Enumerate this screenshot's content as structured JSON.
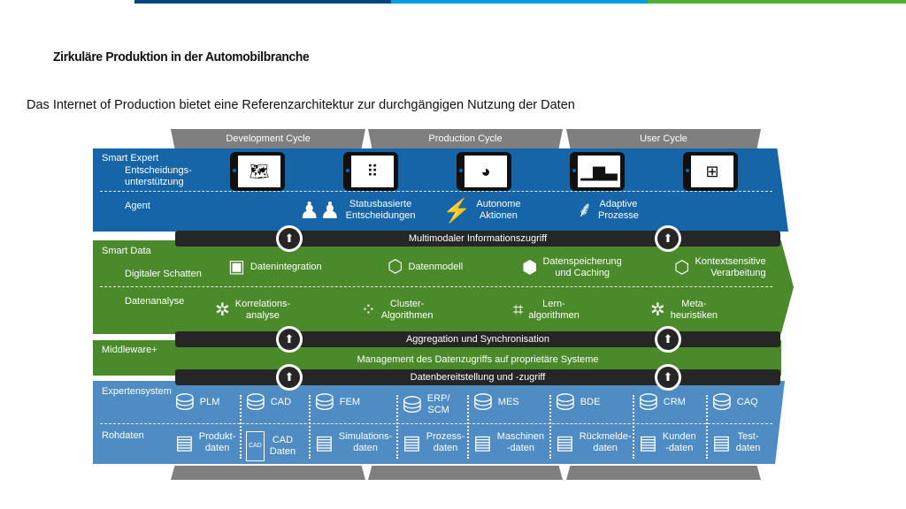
{
  "colors": {
    "top_dark_blue": "#00457c",
    "top_light_blue": "#009fe3",
    "top_green": "#52ae32",
    "smart_expert": "#1565a8",
    "smart_data": "#4a8a2a",
    "experten": "#4f8cc4",
    "bar": "#262626",
    "cycle": "#7f7f7f"
  },
  "title": "Zirkuläre Produktion in der Automobilbranche",
  "subtitle": "Das Internet of Production bietet eine Referenzarchitektur zur durchgängigen Nutzung der Daten",
  "cycles": [
    "Development Cycle",
    "Production Cycle",
    "User Cycle"
  ],
  "smart_expert": {
    "label": "Smart Expert",
    "sub1": "Entscheidungs-\nunterstützung",
    "sub2": "Agent",
    "tablet_icons": [
      "map-icon",
      "grid-icon",
      "pie-alert-icon",
      "bar-chart-icon",
      "flowchart-icon"
    ],
    "agents": [
      {
        "icon": "chess-pawns-icon",
        "text": "Statusbasierte\nEntscheidungen"
      },
      {
        "icon": "lightning-icon",
        "text": "Autonome\nAktionen"
      },
      {
        "icon": "neural-tree-icon",
        "text": "Adaptive\nProzesse"
      }
    ]
  },
  "bars": {
    "b1": "Multimodaler Informationszugriff",
    "b2": "Aggregation und Synchronisation",
    "b3": "Datenbereitstellung und -zugriff"
  },
  "smart_data": {
    "label": "Smart Data",
    "sub1": "Digitaler Schatten",
    "sub2": "Datenanalyse",
    "shadow": [
      {
        "icon": "chip-icon",
        "text": "Datenintegration"
      },
      {
        "icon": "cube-icon",
        "text": "Datenmodell"
      },
      {
        "icon": "cube-network-icon",
        "text": "Datenspeicherung\nund Caching"
      },
      {
        "icon": "cube-icon",
        "text": "Kontextsensitive\nVerarbeitung"
      }
    ],
    "analysis": [
      {
        "icon": "network-icon",
        "text": "Korrelations-\nanalyse"
      },
      {
        "icon": "dots-cluster-icon",
        "text": "Cluster-\nAlgorithmen"
      },
      {
        "icon": "flow-icon",
        "text": "Lern-\nalgorithmen"
      },
      {
        "icon": "network-icon",
        "text": "Meta-\nheuristiken"
      }
    ]
  },
  "middleware": {
    "label": "Middleware+",
    "text": "Management des Datenzugriffs auf proprietäre Systeme"
  },
  "experten": {
    "label": "Expertensystem",
    "sub": "Rohdaten",
    "systems": [
      "PLM",
      "CAD",
      "FEM",
      "ERP/\nSCM",
      "MES",
      "BDE",
      "CRM",
      "CAQ"
    ],
    "raw": [
      "Produkt-\ndaten",
      "CAD\nDaten",
      "Simulations-\ndaten",
      "Prozess-\ndaten",
      "Maschinen\n-daten",
      "Rückmelde-\ndaten",
      "Kunden\n-daten",
      "Test-\ndaten"
    ],
    "cad_doc_label": "CAD"
  }
}
